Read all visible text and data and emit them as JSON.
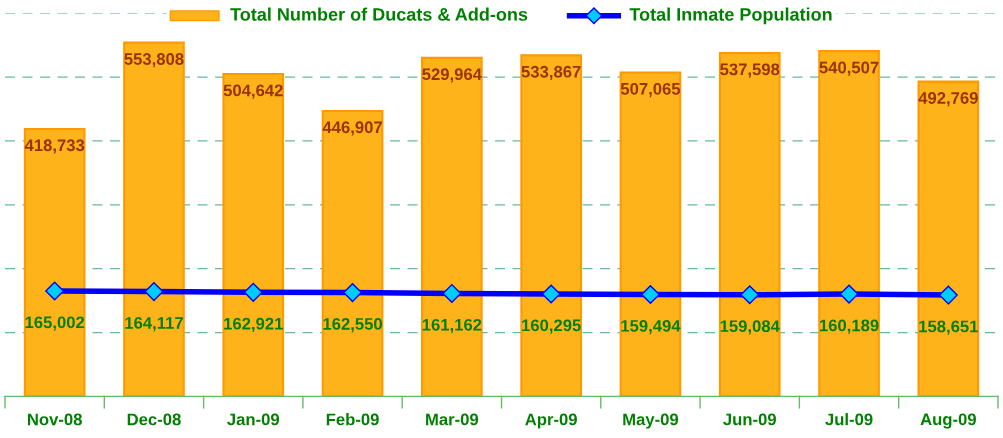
{
  "chart_data": {
    "type": "bar",
    "categories": [
      "Nov-08",
      "Dec-08",
      "Jan-09",
      "Feb-09",
      "Mar-09",
      "Apr-09",
      "May-09",
      "Jun-09",
      "Jul-09",
      "Aug-09"
    ],
    "series": [
      {
        "name": "Total Number of Ducats & Add-ons",
        "color": "#ffb31a",
        "values": [
          418733,
          553808,
          504642,
          446907,
          529964,
          533867,
          507065,
          537598,
          540507,
          492769
        ],
        "value_labels": [
          "418,733",
          "553,808",
          "504,642",
          "446,907",
          "529,964",
          "533,867",
          "507,065",
          "537,598",
          "540,507",
          "492,769"
        ]
      },
      {
        "name": "Total Inmate Population",
        "type": "line",
        "color": "#0000ff",
        "marker": "diamond",
        "values": [
          165002,
          164117,
          162921,
          162550,
          161162,
          160295,
          159494,
          159084,
          160189,
          158651
        ],
        "value_labels": [
          "165,002",
          "164,117",
          "162,921",
          "162,550",
          "161,162",
          "160,295",
          "159,494",
          "159,084",
          "160,189",
          "158,651"
        ]
      }
    ],
    "ylim": [
      0,
      600000
    ],
    "yticks": [
      {
        "value": 100000,
        "label": null
      },
      {
        "value": 200000,
        "label": null
      },
      {
        "value": 300000,
        "label": null
      },
      {
        "value": 400000,
        "label": null
      },
      {
        "value": 500000,
        "label": null
      },
      {
        "value": 600000,
        "label": null
      }
    ],
    "tick_labels": "x",
    "grid": "y",
    "legend": "top"
  }
}
